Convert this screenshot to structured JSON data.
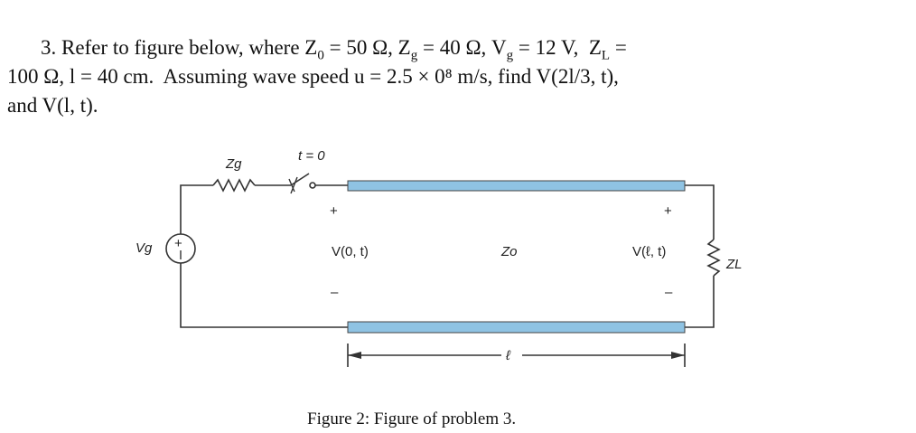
{
  "problem": {
    "lines": [
      [
        "3. Refer to figure below, where Z",
        "0",
        " = 50 Ω, Z",
        "g",
        " = 40 Ω, V",
        "g",
        " = 12 V,  Z",
        "L",
        " ="
      ],
      [
        "100 Ω, l = 40 cm.  Assuming wave speed u = 2.5 × 0⁸ m/s, find V(2l/3, t),"
      ],
      [
        "and V(l, t)."
      ]
    ]
  },
  "figure": {
    "generator_impedance": "Zg",
    "switch_time": "t = 0",
    "source_plus": "+",
    "source_voltage": "Vg",
    "plus_left": "+",
    "plus_right": "+",
    "input_voltage": "V(0, t)",
    "line_impedance": "Zo",
    "load_voltage": "V(ℓ, t)",
    "load_impedance": "ZL",
    "minus_left": "–",
    "minus_right": "–",
    "length": "ℓ",
    "caption": "Figure 2: Figure of problem 3."
  }
}
